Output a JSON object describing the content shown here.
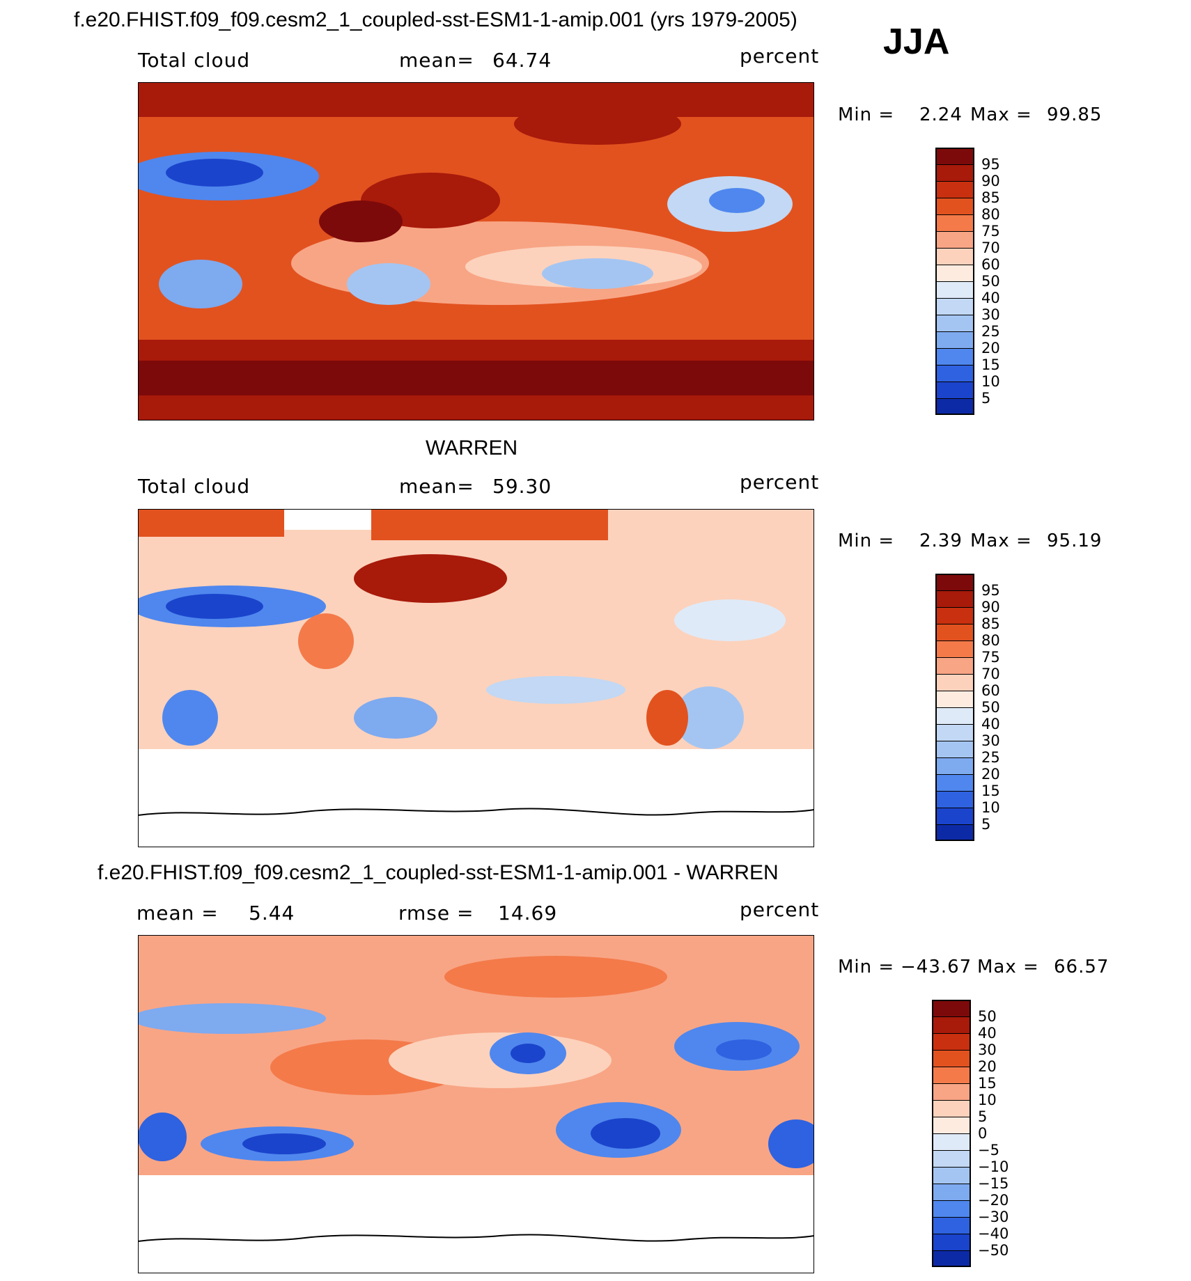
{
  "header": {
    "title": "f.e20.FHIST.f09_f09.cesm2_1_coupled-sst-ESM1-1-amip.001 (yrs 1979-2005)",
    "season": "JJA"
  },
  "colors": {
    "reds": [
      "#7d0a0a",
      "#a81a0a",
      "#c9300f",
      "#e2521f",
      "#f47a4a",
      "#f8a585",
      "#fcd2bc",
      "#fdebe0"
    ],
    "blues": [
      "#dfeaf8",
      "#c2d8f4",
      "#a4c5f2",
      "#7eaaf0",
      "#4f87ee",
      "#2e62e0",
      "#1b44cc",
      "#0d2aa6",
      "#00126e"
    ]
  },
  "panels": [
    {
      "id": "model",
      "variable": "Total cloud",
      "stat_label": "mean=",
      "stat_value": "64.74",
      "units": "percent",
      "min_label": "Min =",
      "min_value": "2.24",
      "max_label": "Max =",
      "max_value": "99.85",
      "colorbar_levels": [
        "95",
        "90",
        "85",
        "80",
        "75",
        "70",
        "60",
        "50",
        "40",
        "30",
        "25",
        "20",
        "15",
        "10",
        "5"
      ]
    },
    {
      "id": "obs",
      "title": "WARREN",
      "variable": "Total cloud",
      "stat_label": "mean=",
      "stat_value": "59.30",
      "units": "percent",
      "min_label": "Min =",
      "min_value": "2.39",
      "max_label": "Max =",
      "max_value": "95.19",
      "colorbar_levels": [
        "95",
        "90",
        "85",
        "80",
        "75",
        "70",
        "60",
        "50",
        "40",
        "30",
        "25",
        "20",
        "15",
        "10",
        "5"
      ]
    },
    {
      "id": "diff",
      "title": "f.e20.FHIST.f09_f09.cesm2_1_coupled-sst-ESM1-1-amip.001 - WARREN",
      "variable": "mean =",
      "stat_label": "rmse =",
      "mean_value": "5.44",
      "stat_value": "14.69",
      "units": "percent",
      "min_label": "Min =",
      "min_value": "−43.67",
      "max_label": "Max =",
      "max_value": "66.57",
      "colorbar_levels": [
        "50",
        "40",
        "30",
        "20",
        "15",
        "10",
        "5",
        "0",
        "−5",
        "−10",
        "−15",
        "−20",
        "−30",
        "−40",
        "−50"
      ]
    }
  ]
}
